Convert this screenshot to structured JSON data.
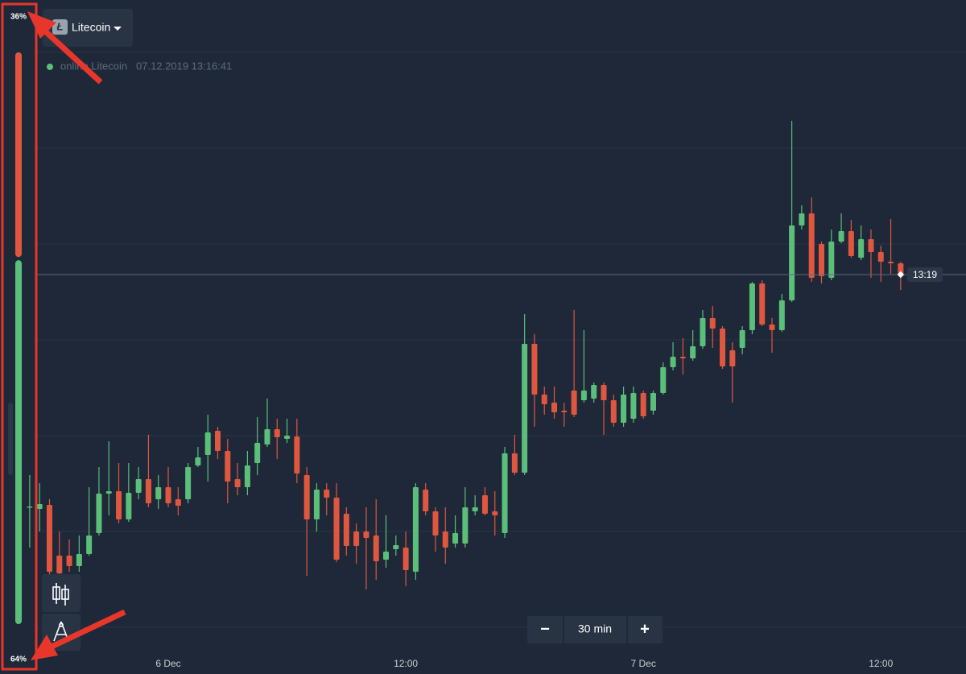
{
  "header": {
    "asset": "Litecoin",
    "status": "online Litecoin",
    "timestamp": "07.12.2019 13:16:41"
  },
  "sentiment": {
    "values": [
      36,
      64
    ],
    "value_labels": [
      "36%",
      "64%"
    ],
    "colors": [
      "#e0573f",
      "#5bbf7a"
    ]
  },
  "zoom": {
    "minus": "−",
    "interval": "30 min",
    "plus": "+"
  },
  "chart_data": {
    "type": "candlestick",
    "up_color": "#5bbf7a",
    "down_color": "#e0573f",
    "x": [
      -7,
      -6.5,
      -6,
      -5.5,
      -5,
      -4.5,
      -4,
      -3.5,
      -3,
      -2.5,
      -2,
      -1.5,
      -1,
      -0.5,
      0,
      0.5,
      1,
      1.5,
      2,
      2.5,
      3,
      3.5,
      4,
      4.5,
      5,
      5.5,
      6,
      6.5,
      7,
      7.5,
      8,
      8.5,
      9,
      9.5,
      10,
      10.5,
      11,
      11.5,
      12,
      12.5,
      13,
      13.5,
      14,
      14.5,
      15,
      15.5,
      16,
      16.5,
      17,
      17.5,
      18,
      18.5,
      19,
      19.5,
      20,
      20.5,
      21,
      21.5,
      22,
      22.5,
      23,
      23.5,
      24,
      24.5,
      25,
      25.5,
      26,
      26.5,
      27,
      27.5,
      28,
      28.5,
      29,
      29.5,
      30,
      30.5,
      31,
      31.5,
      32,
      32.5,
      33,
      33.5,
      34,
      34.5,
      35,
      35.5,
      36,
      36.5,
      37
    ],
    "ohlc": [
      [
        171,
        210,
        120,
        171
      ],
      [
        168,
        200,
        140,
        174
      ],
      [
        173,
        180,
        80,
        90
      ],
      [
        110,
        140,
        70,
        88
      ],
      [
        110,
        130,
        90,
        97
      ],
      [
        97,
        135,
        90,
        112
      ],
      [
        112,
        195,
        110,
        135
      ],
      [
        138,
        220,
        135,
        187
      ],
      [
        187,
        252,
        160,
        190
      ],
      [
        190,
        225,
        150,
        155
      ],
      [
        155,
        225,
        152,
        188
      ],
      [
        188,
        220,
        180,
        205
      ],
      [
        205,
        260,
        170,
        175
      ],
      [
        180,
        210,
        168,
        195
      ],
      [
        195,
        220,
        170,
        175
      ],
      [
        180,
        195,
        160,
        172
      ],
      [
        180,
        225,
        175,
        220
      ],
      [
        222,
        245,
        220,
        232
      ],
      [
        235,
        285,
        202,
        263
      ],
      [
        265,
        270,
        230,
        240
      ],
      [
        240,
        255,
        175,
        202
      ],
      [
        205,
        225,
        185,
        195
      ],
      [
        195,
        240,
        185,
        222
      ],
      [
        225,
        282,
        210,
        250
      ],
      [
        248,
        305,
        245,
        267
      ],
      [
        267,
        280,
        230,
        257
      ],
      [
        255,
        280,
        250,
        259
      ],
      [
        258,
        280,
        200,
        212
      ],
      [
        210,
        220,
        85,
        155
      ],
      [
        155,
        200,
        140,
        192
      ],
      [
        192,
        200,
        160,
        182
      ],
      [
        182,
        200,
        102,
        105
      ],
      [
        162,
        170,
        110,
        122
      ],
      [
        140,
        150,
        100,
        122
      ],
      [
        140,
        170,
        68,
        132
      ],
      [
        135,
        180,
        80,
        103
      ],
      [
        105,
        160,
        95,
        115
      ],
      [
        118,
        135,
        110,
        123
      ],
      [
        120,
        140,
        72,
        92
      ],
      [
        90,
        200,
        80,
        195
      ],
      [
        192,
        200,
        160,
        165
      ],
      [
        165,
        170,
        115,
        135
      ],
      [
        140,
        170,
        100,
        120
      ],
      [
        125,
        160,
        120,
        138
      ],
      [
        125,
        195,
        120,
        170
      ],
      [
        165,
        185,
        160,
        170
      ],
      [
        185,
        195,
        160,
        162
      ],
      [
        165,
        190,
        135,
        160
      ],
      [
        138,
        245,
        132,
        237
      ],
      [
        237,
        260,
        210,
        213
      ],
      [
        213,
        410,
        210,
        373
      ],
      [
        373,
        385,
        270,
        310
      ],
      [
        310,
        320,
        285,
        298
      ],
      [
        300,
        320,
        280,
        288
      ],
      [
        290,
        300,
        270,
        288
      ],
      [
        315,
        415,
        282,
        285
      ],
      [
        303,
        390,
        300,
        315
      ],
      [
        305,
        325,
        300,
        322
      ],
      [
        322,
        325,
        260,
        303
      ],
      [
        303,
        310,
        270,
        275
      ],
      [
        275,
        320,
        270,
        310
      ],
      [
        280,
        320,
        275,
        312
      ],
      [
        312,
        315,
        280,
        283
      ],
      [
        290,
        315,
        285,
        312
      ],
      [
        312,
        350,
        310,
        344
      ],
      [
        344,
        375,
        340,
        357
      ],
      [
        357,
        380,
        335,
        355
      ],
      [
        355,
        390,
        352,
        370
      ],
      [
        370,
        415,
        367,
        405
      ],
      [
        405,
        420,
        368,
        392
      ],
      [
        392,
        395,
        342,
        345
      ],
      [
        365,
        375,
        300,
        345
      ],
      [
        368,
        395,
        360,
        390
      ],
      [
        390,
        450,
        385,
        448
      ],
      [
        448,
        452,
        395,
        397
      ],
      [
        397,
        405,
        362,
        390
      ],
      [
        390,
        435,
        388,
        427
      ],
      [
        427,
        650,
        425,
        520
      ],
      [
        520,
        545,
        515,
        535
      ],
      [
        535,
        555,
        450,
        455
      ],
      [
        497,
        500,
        448,
        457
      ],
      [
        455,
        515,
        452,
        500
      ],
      [
        500,
        535,
        498,
        513
      ],
      [
        513,
        527,
        480,
        482
      ],
      [
        480,
        520,
        477,
        503
      ],
      [
        503,
        515,
        455,
        487
      ],
      [
        487,
        495,
        450,
        475
      ],
      [
        475,
        528,
        460,
        473
      ],
      [
        473,
        475,
        440,
        459
      ]
    ],
    "xlim": [
      -8.5,
      40.3
    ],
    "ylim": [
      0,
      800
    ],
    "xticks": [
      {
        "value": 0,
        "label": "6 Dec"
      },
      {
        "value": 12,
        "label": "12:00"
      },
      {
        "value": 24,
        "label": "7 Dec"
      },
      {
        "value": 36,
        "label": "12:00"
      }
    ],
    "yticks": [
      21,
      140,
      259,
      378,
      497,
      616,
      735
    ],
    "grid": true,
    "current_price": 459,
    "current_time": "13:19"
  }
}
